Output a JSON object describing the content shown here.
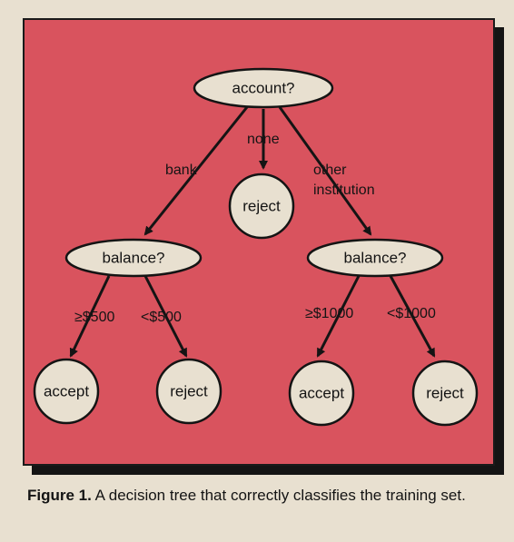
{
  "colors": {
    "panel": "#d9535e",
    "node_fill": "#e8e0d0",
    "ink": "#141414",
    "page": "#e8e0d0"
  },
  "nodes": {
    "root": "account?",
    "reject_none": "reject",
    "balance_bank": "balance?",
    "balance_other": "balance?",
    "accept_500": "accept",
    "reject_500": "reject",
    "accept_1000": "accept",
    "reject_1000": "reject"
  },
  "edges": {
    "bank": "bank",
    "none": "none",
    "other_line1": "other",
    "other_line2": "institution",
    "ge500": "≥$500",
    "lt500": "<$500",
    "ge1000": "≥$1000",
    "lt1000": "<$1000"
  },
  "caption": {
    "label": "Figure 1.",
    "text": " A decision tree that correctly classifies the training set."
  }
}
